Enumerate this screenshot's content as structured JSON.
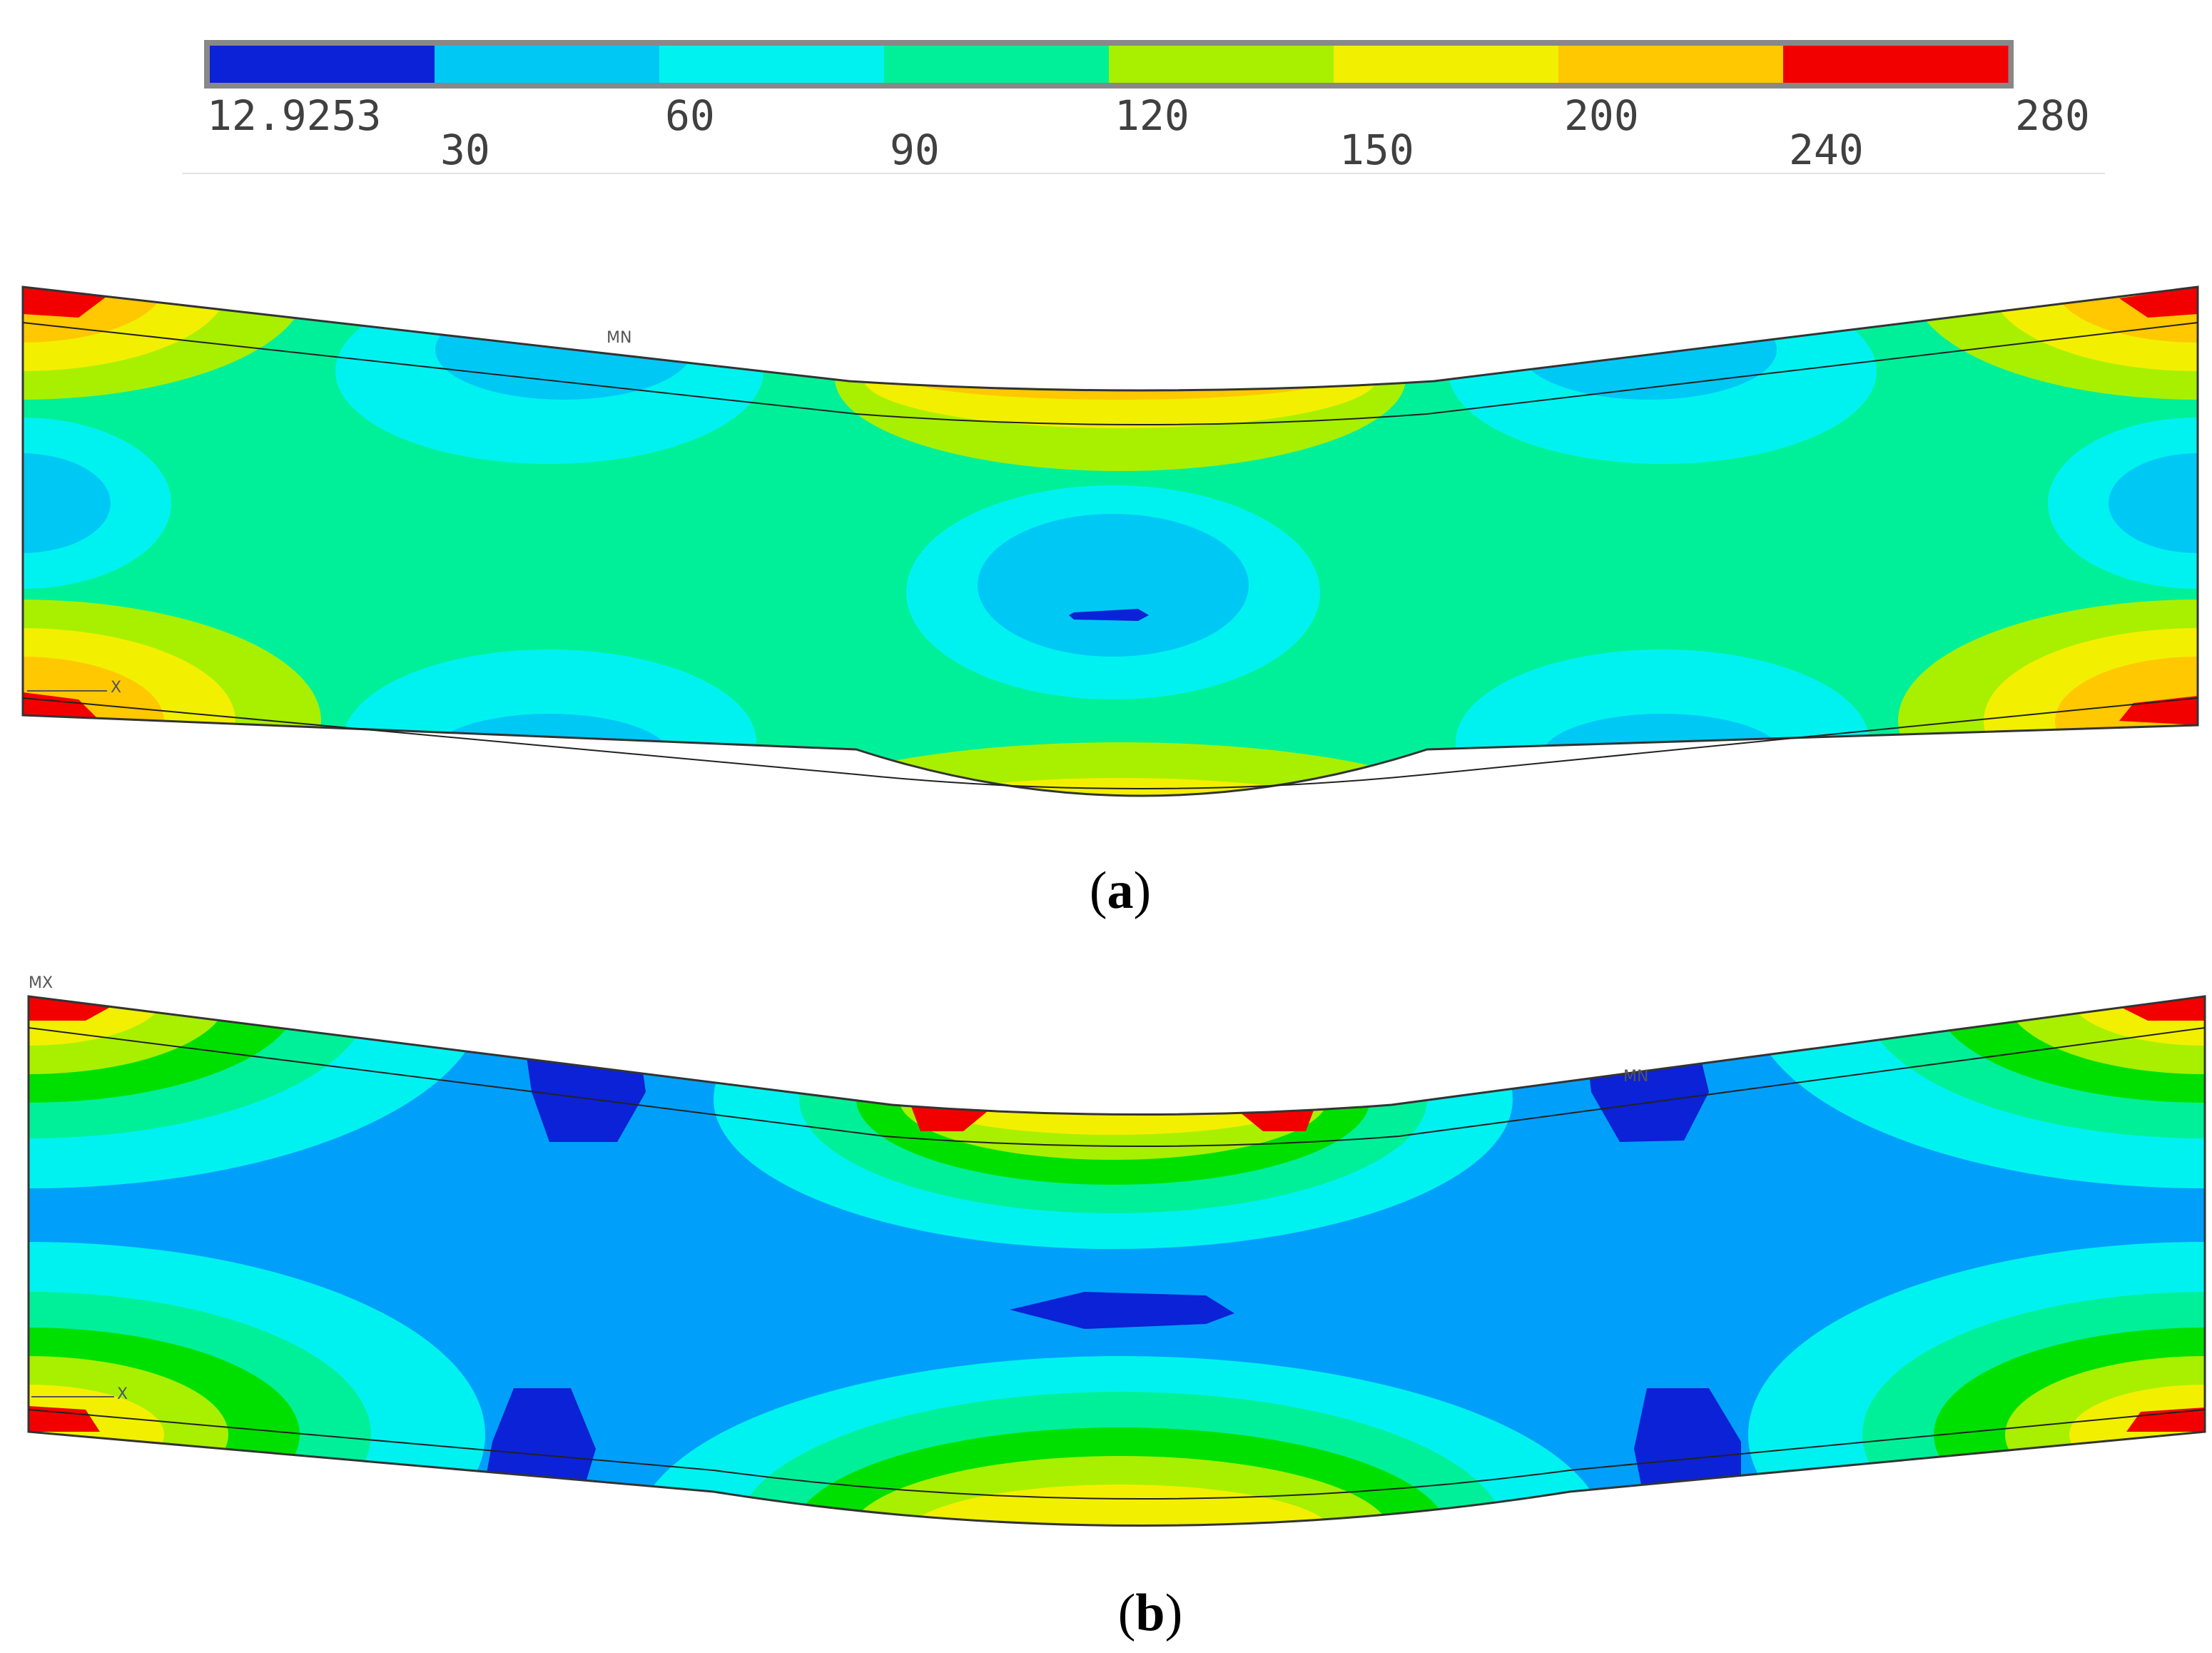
{
  "legend": {
    "min_label": "12.9253",
    "tick_labels": [
      "30",
      "60",
      "90",
      "120",
      "150",
      "200",
      "240",
      "280"
    ],
    "bands": [
      {
        "from": "12.9253",
        "to": "30",
        "color": "#0B22D6"
      },
      {
        "from": "30",
        "to": "60",
        "color": "#00C8F5"
      },
      {
        "from": "60",
        "to": "90",
        "color": "#00F2F0"
      },
      {
        "from": "90",
        "to": "120",
        "color": "#00F09A"
      },
      {
        "from": "120",
        "to": "150",
        "color": "#A8F000"
      },
      {
        "from": "150",
        "to": "200",
        "color": "#F2F000"
      },
      {
        "from": "200",
        "to": "240",
        "color": "#FFC800"
      },
      {
        "from": "240",
        "to": "280",
        "color": "#F20000"
      }
    ]
  },
  "panels": [
    {
      "caption_open": "(",
      "caption_letter": "a",
      "caption_close": ")",
      "min_marker": "MN",
      "axis_label": "X",
      "base_color": "#00F09A"
    },
    {
      "caption_open": "(",
      "caption_letter": "b",
      "caption_close": ")",
      "max_marker": "MX",
      "min_marker": "MN",
      "axis_label": "X",
      "base_color": "#00A0FA"
    }
  ]
}
